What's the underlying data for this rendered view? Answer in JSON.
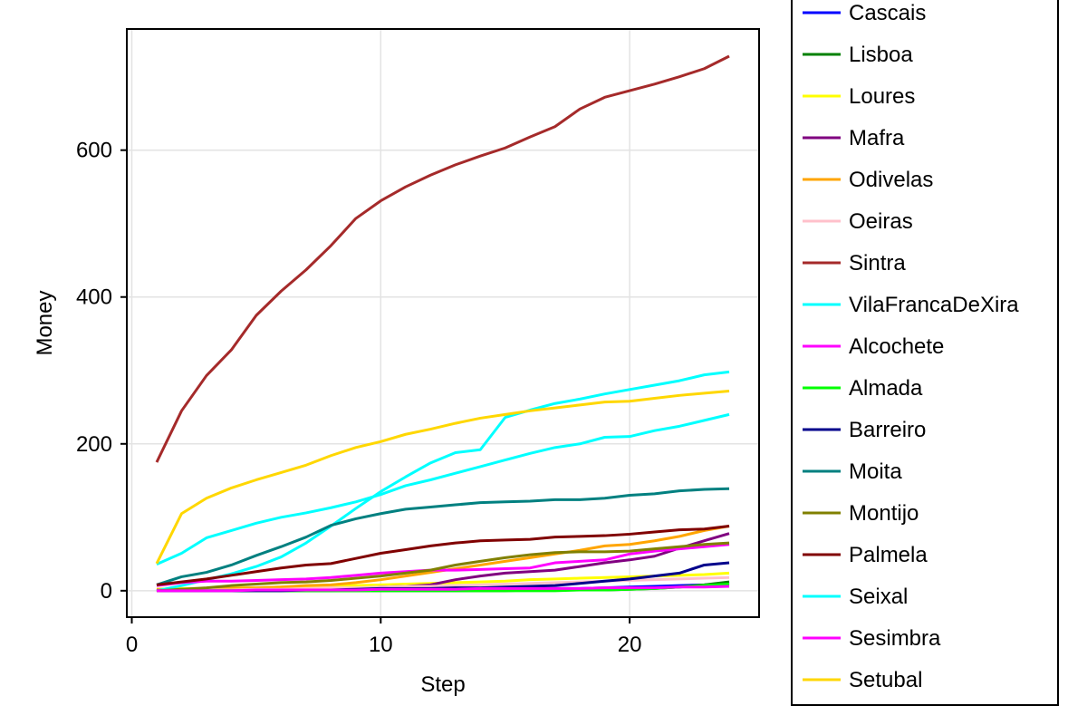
{
  "chart_data": {
    "type": "line",
    "title": "",
    "xlabel": "Step",
    "ylabel": "Money",
    "xlim": [
      -0.2,
      25.2
    ],
    "ylim": [
      -36,
      765
    ],
    "xticks": [
      0,
      10,
      20
    ],
    "yticks": [
      0,
      200,
      400,
      600
    ],
    "grid": true,
    "legend_position": "right",
    "x": [
      1,
      2,
      3,
      4,
      5,
      6,
      7,
      8,
      9,
      10,
      11,
      12,
      13,
      14,
      15,
      16,
      17,
      18,
      19,
      20,
      21,
      22,
      23,
      24
    ],
    "series": [
      {
        "name": "Cascais",
        "color": "#0000ff",
        "values": [
          0,
          0,
          0,
          0,
          0,
          0,
          0,
          0,
          1,
          1,
          1,
          1,
          2,
          2,
          2,
          3,
          3,
          3,
          4,
          5,
          6,
          7,
          8,
          10
        ]
      },
      {
        "name": "Lisboa",
        "color": "#008000",
        "values": [
          0,
          0,
          0,
          0,
          0,
          0,
          0,
          0,
          0,
          0,
          0,
          0,
          0,
          0,
          0,
          1,
          1,
          1,
          1,
          2,
          3,
          5,
          8,
          12
        ]
      },
      {
        "name": "Loures",
        "color": "#ffff00",
        "values": [
          2,
          3,
          3,
          4,
          4,
          5,
          5,
          6,
          7,
          8,
          9,
          10,
          11,
          12,
          13,
          15,
          16,
          17,
          18,
          19,
          20,
          21,
          22,
          24
        ]
      },
      {
        "name": "Mafra",
        "color": "#800080",
        "values": [
          0,
          0,
          0,
          0,
          0,
          0,
          1,
          2,
          3,
          5,
          6,
          8,
          15,
          20,
          24,
          26,
          28,
          33,
          38,
          42,
          47,
          58,
          68,
          78
        ]
      },
      {
        "name": "Odivelas",
        "color": "#ffa500",
        "values": [
          2,
          2,
          2,
          3,
          4,
          5,
          7,
          8,
          11,
          15,
          20,
          25,
          30,
          35,
          40,
          45,
          50,
          55,
          61,
          63,
          68,
          74,
          82,
          88
        ]
      },
      {
        "name": "Oeiras",
        "color": "#ffc0cb",
        "values": [
          0,
          0,
          1,
          1,
          2,
          2,
          3,
          4,
          4,
          5,
          6,
          6,
          7,
          8,
          9,
          10,
          11,
          12,
          13,
          14,
          15,
          16,
          17,
          18
        ]
      },
      {
        "name": "Sintra",
        "color": "#a52a2a",
        "values": [
          175,
          245,
          293,
          328,
          375,
          408,
          437,
          470,
          507,
          531,
          550,
          566,
          580,
          592,
          603,
          618,
          632,
          656,
          672,
          681,
          690,
          700,
          711,
          728
        ]
      },
      {
        "name": "VilaFrancaDeXira",
        "color": "#00ffff",
        "values": [
          0,
          7,
          15,
          23,
          33,
          46,
          65,
          88,
          112,
          135,
          155,
          174,
          188,
          192,
          236,
          246,
          255,
          261,
          268,
          274,
          280,
          286,
          294,
          298
        ]
      },
      {
        "name": "Alcochete",
        "color": "#ff00ff",
        "values": [
          7,
          11,
          13,
          13,
          14,
          15,
          16,
          18,
          21,
          24,
          26,
          28,
          28,
          29,
          30,
          31,
          38,
          40,
          42,
          50,
          54,
          57,
          60,
          63
        ]
      },
      {
        "name": "Almada",
        "color": "#00ff00",
        "values": [
          0,
          0,
          0,
          0,
          0,
          0,
          0,
          0,
          0,
          0,
          0,
          0,
          0,
          0,
          0,
          0,
          0,
          1,
          1,
          2,
          3,
          5,
          7,
          9
        ]
      },
      {
        "name": "Barreiro",
        "color": "#00008b",
        "values": [
          0,
          0,
          0,
          0,
          0,
          0,
          1,
          1,
          2,
          3,
          3,
          3,
          4,
          4,
          5,
          6,
          7,
          10,
          13,
          16,
          20,
          24,
          35,
          38
        ]
      },
      {
        "name": "Moita",
        "color": "#008080",
        "values": [
          8,
          19,
          25,
          35,
          48,
          60,
          73,
          89,
          98,
          105,
          111,
          114,
          117,
          120,
          121,
          122,
          124,
          124,
          126,
          130,
          132,
          136,
          138,
          139
        ]
      },
      {
        "name": "Montijo",
        "color": "#808000",
        "values": [
          0,
          2,
          4,
          7,
          9,
          11,
          12,
          14,
          17,
          20,
          24,
          28,
          35,
          40,
          45,
          49,
          52,
          53,
          53,
          54,
          57,
          60,
          63,
          65
        ]
      },
      {
        "name": "Palmela",
        "color": "#800000",
        "values": [
          8,
          12,
          16,
          21,
          26,
          31,
          35,
          37,
          44,
          51,
          56,
          61,
          65,
          68,
          69,
          70,
          73,
          74,
          75,
          77,
          80,
          83,
          84,
          88
        ]
      },
      {
        "name": "Seixal",
        "color": "#00ffff",
        "values": [
          36,
          51,
          72,
          82,
          92,
          100,
          106,
          113,
          121,
          131,
          143,
          151,
          160,
          169,
          178,
          187,
          195,
          200,
          209,
          210,
          218,
          224,
          232,
          240
        ]
      },
      {
        "name": "Sesimbra",
        "color": "#ff00ff",
        "values": [
          0,
          0,
          0,
          0,
          1,
          1,
          1,
          1,
          1,
          2,
          2,
          2,
          2,
          3,
          3,
          3,
          3,
          3,
          4,
          4,
          4,
          5,
          5,
          6
        ]
      },
      {
        "name": "Setubal",
        "color": "#ffd700",
        "values": [
          37,
          105,
          126,
          140,
          151,
          161,
          171,
          184,
          195,
          203,
          213,
          220,
          228,
          235,
          240,
          245,
          249,
          253,
          257,
          258,
          262,
          266,
          269,
          272
        ]
      }
    ]
  }
}
